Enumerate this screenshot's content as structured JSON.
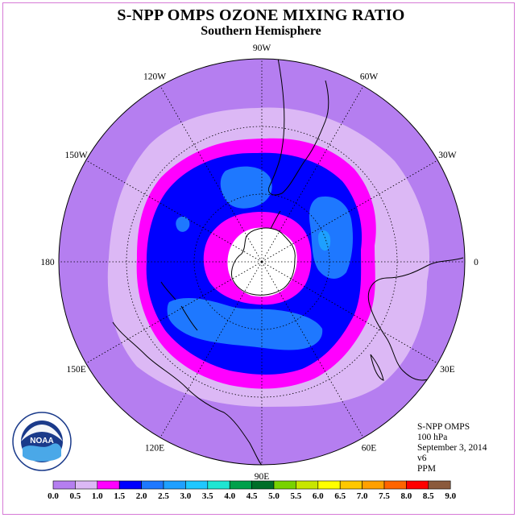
{
  "title": "S-NPP OMPS OZONE MIXING RATIO",
  "subtitle": "Southern Hemisphere",
  "info": {
    "instrument": "S-NPP OMPS",
    "level": "100 hPa",
    "date": "September 3, 2014",
    "version": "v6",
    "units": "PPM"
  },
  "logo": {
    "text": "NOAA",
    "ring_text": "NATIONAL OCEANIC AND ATMOSPHERIC ADMINISTRATION · U.S. DEPARTMENT OF COMMERCE"
  },
  "longitude_labels": [
    {
      "text": "90W",
      "angle": 270
    },
    {
      "text": "60W",
      "angle": 300
    },
    {
      "text": "30W",
      "angle": 330
    },
    {
      "text": "0",
      "angle": 0
    },
    {
      "text": "30E",
      "angle": 30
    },
    {
      "text": "60E",
      "angle": 60
    },
    {
      "text": "90E",
      "angle": 90
    },
    {
      "text": "120E",
      "angle": 120
    },
    {
      "text": "150E",
      "angle": 150
    },
    {
      "text": "180",
      "angle": 180
    },
    {
      "text": "150W",
      "angle": 210
    },
    {
      "text": "120W",
      "angle": 240
    }
  ],
  "colorbar": {
    "labels": [
      "0.0",
      "0.5",
      "1.0",
      "1.5",
      "2.0",
      "2.5",
      "3.0",
      "3.5",
      "4.0",
      "4.5",
      "5.0",
      "5.5",
      "6.0",
      "6.5",
      "7.0",
      "7.5",
      "8.0",
      "8.5",
      "9.0"
    ],
    "colors": [
      "#b57ef0",
      "#dcb8f5",
      "#ff00ff",
      "#0000ff",
      "#1e78ff",
      "#1ea0ff",
      "#1ec8ff",
      "#1ee6d2",
      "#00a04a",
      "#006e28",
      "#78d200",
      "#c8e600",
      "#ffff00",
      "#ffc800",
      "#ffa000",
      "#ff6400",
      "#ff0000",
      "#8b5a3c"
    ]
  },
  "colors": {
    "c00": "#b57ef0",
    "c05": "#dcb8f5",
    "c10": "#ff00ff",
    "c15": "#0000ff",
    "c20": "#1e78ff",
    "c25": "#1ea0ff",
    "frame": "#d67ad6"
  }
}
